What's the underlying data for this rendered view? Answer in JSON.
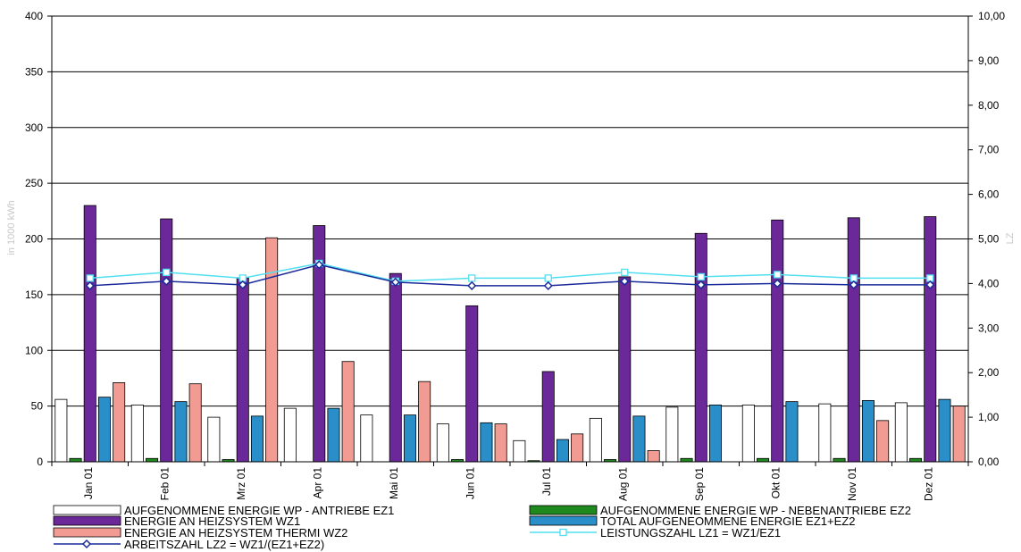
{
  "chart_data": {
    "type": "bar",
    "categories": [
      "Jan 01",
      "Feb 01",
      "Mrz 01",
      "Apr 01",
      "Mai 01",
      "Jun 01",
      "Jul 01",
      "Aug 01",
      "Sep 01",
      "Okt 01",
      "Nov 01",
      "Dez 01"
    ],
    "ylabel": "in 1000 kWh",
    "y2label": "LZ",
    "ylim": [
      0,
      400
    ],
    "y2lim": [
      0,
      10
    ],
    "yticks": [
      0,
      50,
      100,
      150,
      200,
      250,
      300,
      350,
      400
    ],
    "y2ticks": [
      "0,00",
      "1,00",
      "2,00",
      "3,00",
      "4,00",
      "5,00",
      "6,00",
      "7,00",
      "8,00",
      "9,00",
      "10,00"
    ],
    "grid": true,
    "legend_position": "bottom",
    "series": [
      {
        "name": "AUFGENOMMENE ENERGIE WP - ANTRIEBE EZ1",
        "kind": "bar",
        "color": "#ffffff",
        "values": [
          56,
          51,
          40,
          48,
          42,
          34,
          19,
          39,
          49,
          51,
          52,
          53
        ]
      },
      {
        "name": "AUFGENOMMENE ENERGIE WP - NEBENANTRIEBE EZ2",
        "kind": "bar",
        "color": "#1e8a1e",
        "values": [
          3,
          3,
          2,
          0,
          0,
          2,
          1,
          2,
          3,
          3,
          3,
          3
        ]
      },
      {
        "name": "ENERGIE AN HEIZSYSTEM WZ1",
        "kind": "bar",
        "color": "#6a2898",
        "values": [
          230,
          218,
          165,
          212,
          169,
          140,
          81,
          166,
          205,
          217,
          219,
          220
        ]
      },
      {
        "name": "TOTAL AUFGENEOMMENE ENERGIE EZ1+EZ2",
        "kind": "bar",
        "color": "#2a8fc8",
        "values": [
          58,
          54,
          41,
          48,
          42,
          35,
          20,
          41,
          51,
          54,
          55,
          56
        ]
      },
      {
        "name": "ENERGIE AN HEIZSYSTEM THERMI WZ2",
        "kind": "bar",
        "color": "#f29b92",
        "values": [
          71,
          70,
          201,
          90,
          72,
          34,
          25,
          10,
          0,
          0,
          37,
          50
        ]
      },
      {
        "name": "LEISTUNGSZAHL LZ1 = WZ1/EZ1",
        "kind": "line",
        "axis": "right",
        "color": "#52e0f0",
        "values": [
          4.12,
          4.25,
          4.12,
          4.45,
          4.05,
          4.12,
          4.12,
          4.25,
          4.15,
          4.2,
          4.12,
          4.12
        ]
      },
      {
        "name": "ARBEITSZAHL LZ2 = WZ1/(EZ1+EZ2)",
        "kind": "line",
        "axis": "right",
        "color": "#1a2a9a",
        "values": [
          3.95,
          4.05,
          3.97,
          4.42,
          4.03,
          3.95,
          3.95,
          4.05,
          3.97,
          4.0,
          3.97,
          3.97
        ]
      }
    ]
  }
}
